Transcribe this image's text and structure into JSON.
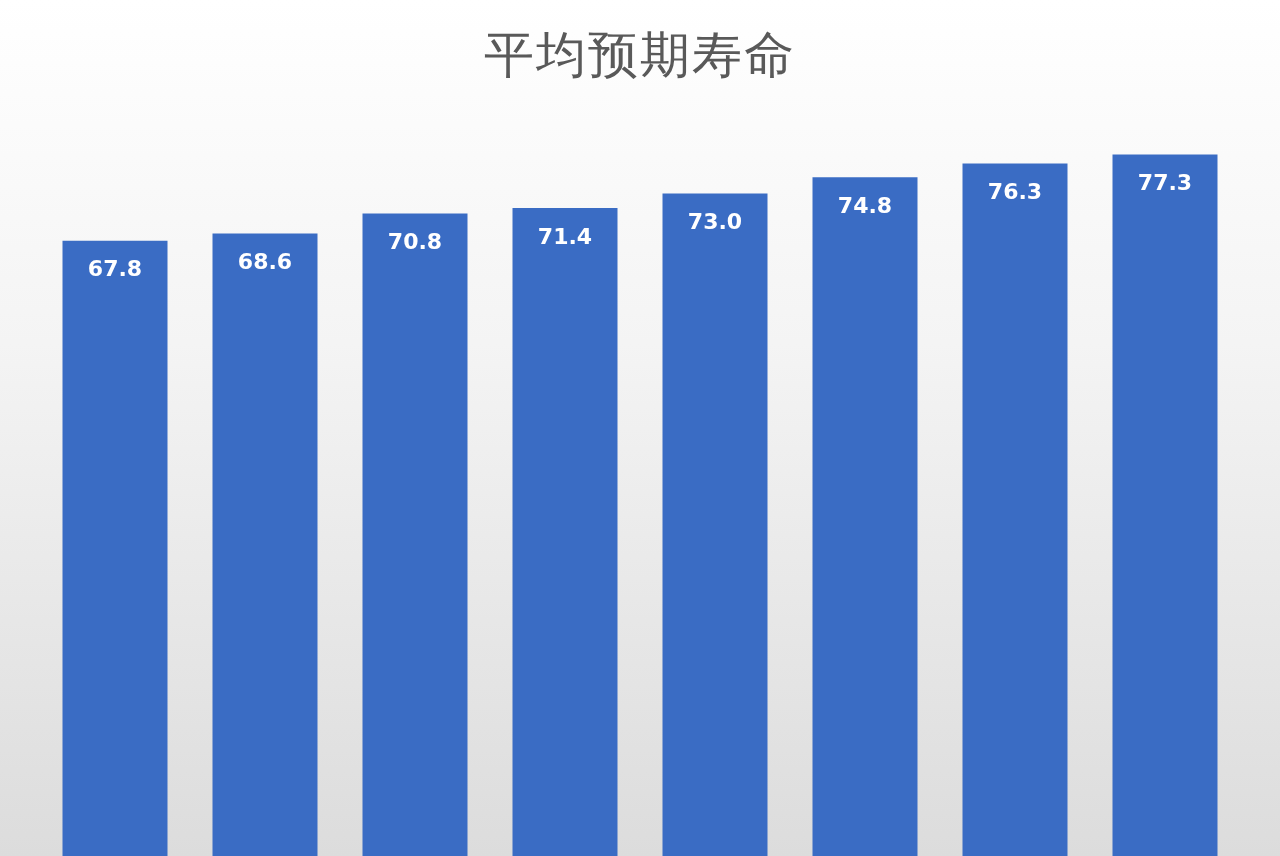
{
  "chart_data": {
    "type": "bar",
    "title": "平均预期寿命",
    "categories": [
      null,
      null,
      null,
      null,
      null,
      null,
      null,
      null
    ],
    "values": [
      67.8,
      68.6,
      70.8,
      71.4,
      73.0,
      74.8,
      76.3,
      77.3
    ],
    "value_labels": [
      "67.8",
      "68.6",
      "70.8",
      "71.4",
      "73.0",
      "74.8",
      "76.3",
      "77.3"
    ],
    "color": "#3a6cc4"
  }
}
